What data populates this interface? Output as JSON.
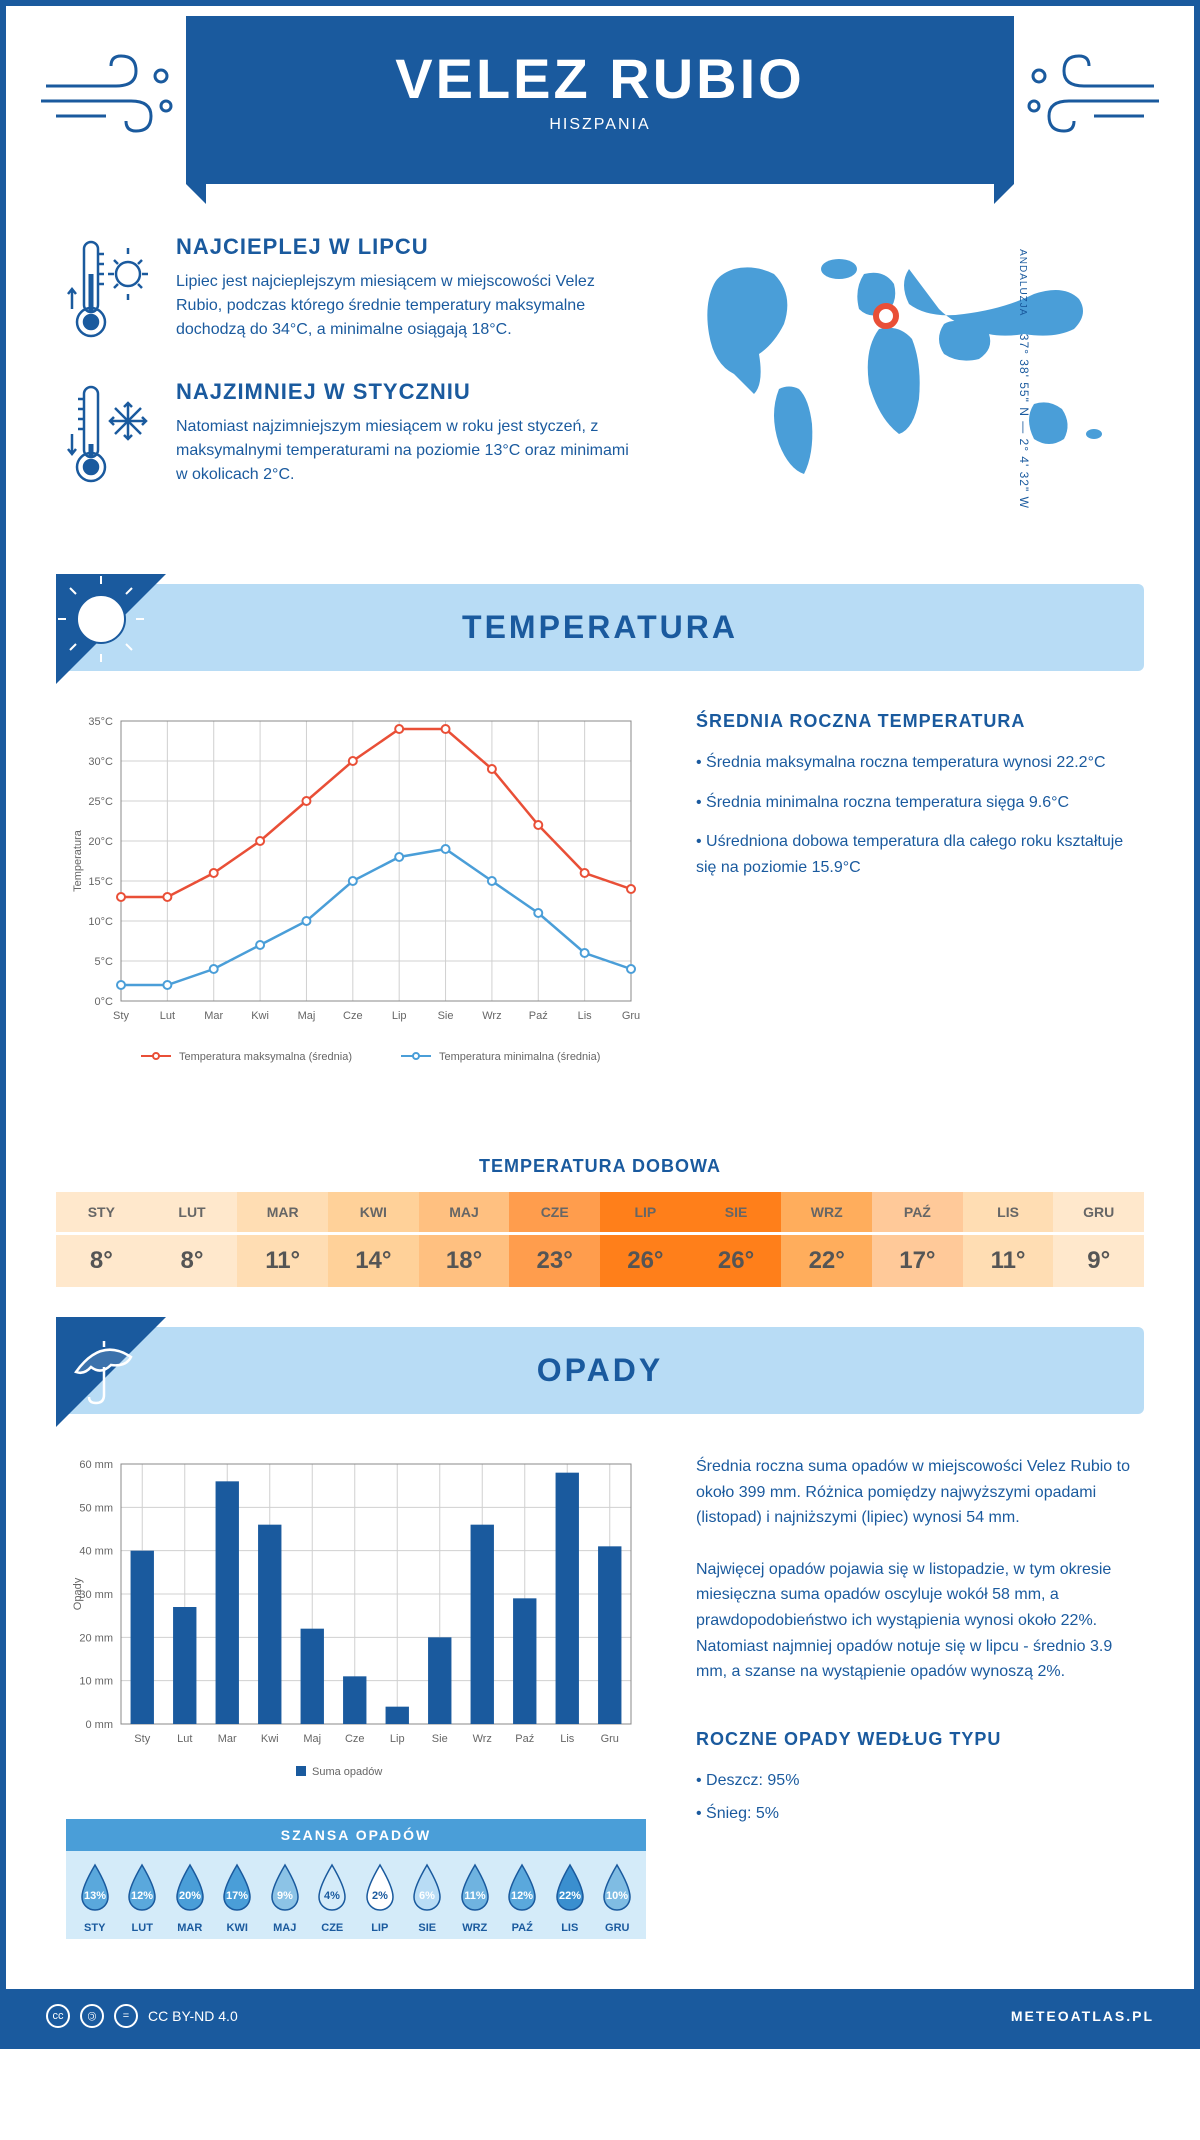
{
  "header": {
    "title": "VELEZ RUBIO",
    "subtitle": "HISZPANIA",
    "coords": "37° 38' 55\" N — 2° 4' 32\" W",
    "region": "ANDALUZJA"
  },
  "hottest": {
    "heading": "NAJCIEPLEJ W LIPCU",
    "text": "Lipiec jest najcieplejszym miesiącem w miejscowości Velez Rubio, podczas którego średnie temperatury maksymalne dochodzą do 34°C, a minimalne osiągają 18°C."
  },
  "coldest": {
    "heading": "NAJZIMNIEJ W STYCZNIU",
    "text": "Natomiast najzimniejszym miesiącem w roku jest styczeń, z maksymalnymi temperaturami na poziomie 13°C oraz minimami w okolicach 2°C."
  },
  "temperature": {
    "banner": "TEMPERATURA",
    "summary_heading": "ŚREDNIA ROCZNA TEMPERATURA",
    "bullets": [
      "• Średnia maksymalna roczna temperatura wynosi 22.2°C",
      "• Średnia minimalna roczna temperatura sięga 9.6°C",
      "• Uśredniona dobowa temperatura dla całego roku kształtuje się na poziomie 15.9°C"
    ],
    "chart": {
      "type": "line",
      "months": [
        "Sty",
        "Lut",
        "Mar",
        "Kwi",
        "Maj",
        "Cze",
        "Lip",
        "Sie",
        "Wrz",
        "Paź",
        "Lis",
        "Gru"
      ],
      "max_values": [
        13,
        13,
        16,
        20,
        25,
        30,
        34,
        34,
        29,
        22,
        16,
        14
      ],
      "min_values": [
        2,
        2,
        4,
        7,
        10,
        15,
        18,
        19,
        15,
        11,
        6,
        4
      ],
      "max_color": "#e94f37",
      "min_color": "#4a9ed8",
      "ylim": [
        0,
        35
      ],
      "ytick_step": 5,
      "ylabel": "Temperatura",
      "grid_color": "#d0d0d0",
      "legend_max": "Temperatura maksymalna (średnia)",
      "legend_min": "Temperatura minimalna (średnia)"
    },
    "daily_heading": "TEMPERATURA DOBOWA",
    "daily": {
      "months": [
        "STY",
        "LUT",
        "MAR",
        "KWI",
        "MAJ",
        "CZE",
        "LIP",
        "SIE",
        "WRZ",
        "PAŹ",
        "LIS",
        "GRU"
      ],
      "temps": [
        "8°",
        "8°",
        "11°",
        "14°",
        "18°",
        "23°",
        "26°",
        "26°",
        "22°",
        "17°",
        "11°",
        "9°"
      ],
      "colors": [
        "#ffe8cc",
        "#ffe8cc",
        "#ffddb3",
        "#ffd199",
        "#ffc080",
        "#ff9d4d",
        "#ff7f1a",
        "#ff7f1a",
        "#ffad5c",
        "#ffc999",
        "#ffddb3",
        "#ffe8cc"
      ]
    }
  },
  "precipitation": {
    "banner": "OPADY",
    "text1": "Średnia roczna suma opadów w miejscowości Velez Rubio to około 399 mm. Różnica pomiędzy najwyższymi opadami (listopad) i najniższymi (lipiec) wynosi 54 mm.",
    "text2": "Najwięcej opadów pojawia się w listopadzie, w tym okresie miesięczna suma opadów oscyluje wokół 58 mm, a prawdopodobieństwo ich wystąpienia wynosi około 22%. Natomiast najmniej opadów notuje się w lipcu - średnio 3.9 mm, a szanse na wystąpienie opadów wynoszą 2%.",
    "type_heading": "ROCZNE OPADY WEDŁUG TYPU",
    "type_rain": "• Deszcz: 95%",
    "type_snow": "• Śnieg: 5%",
    "chart": {
      "type": "bar",
      "months": [
        "Sty",
        "Lut",
        "Mar",
        "Kwi",
        "Maj",
        "Cze",
        "Lip",
        "Sie",
        "Wrz",
        "Paź",
        "Lis",
        "Gru"
      ],
      "values": [
        40,
        27,
        56,
        46,
        22,
        11,
        4,
        20,
        46,
        29,
        58,
        41
      ],
      "bar_color": "#1a5a9e",
      "ylim": [
        0,
        60
      ],
      "ytick_step": 10,
      "ylabel": "Opady",
      "grid_color": "#d0d0d0",
      "legend": "Suma opadów"
    },
    "chance": {
      "heading": "SZANSA OPADÓW",
      "months": [
        "STY",
        "LUT",
        "MAR",
        "KWI",
        "MAJ",
        "CZE",
        "LIP",
        "SIE",
        "WRZ",
        "PAŹ",
        "LIS",
        "GRU"
      ],
      "values": [
        "13%",
        "12%",
        "20%",
        "17%",
        "9%",
        "4%",
        "2%",
        "6%",
        "11%",
        "12%",
        "22%",
        "10%"
      ],
      "fill_colors": [
        "#5aa8dc",
        "#5aa8dc",
        "#4a9ed8",
        "#4a9ed8",
        "#8cc3e6",
        "#d4ebf9",
        "#ffffff",
        "#b8dcf5",
        "#6fb3e0",
        "#5aa8dc",
        "#3a8fcf",
        "#7fbce3"
      ]
    }
  },
  "footer": {
    "license": "CC BY-ND 4.0",
    "site": "METEOATLAS.PL"
  }
}
